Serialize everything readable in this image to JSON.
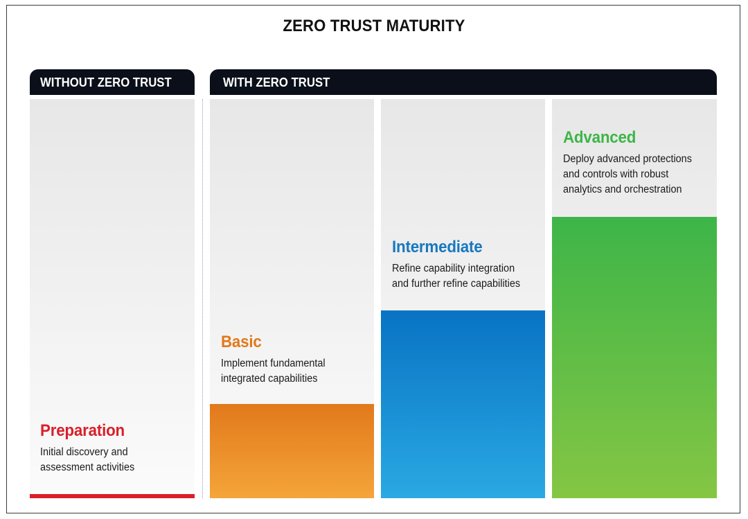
{
  "title": "ZERO TRUST MATURITY",
  "headers": {
    "without": "WITHOUT ZERO TRUST",
    "with": "WITH ZERO TRUST"
  },
  "stages": [
    {
      "name": "Preparation",
      "description": "Initial discovery and assessment activities",
      "color": "#d91f2a"
    },
    {
      "name": "Basic",
      "description": "Implement fundamental integrated capabilities",
      "color": "#e2791b"
    },
    {
      "name": "Intermediate",
      "description": "Refine capability integration and further refine capabilities",
      "color": "#1778bf"
    },
    {
      "name": "Advanced",
      "description": "Deploy advanced protections and controls with robust analytics and orchestration",
      "color": "#3db548"
    }
  ]
}
